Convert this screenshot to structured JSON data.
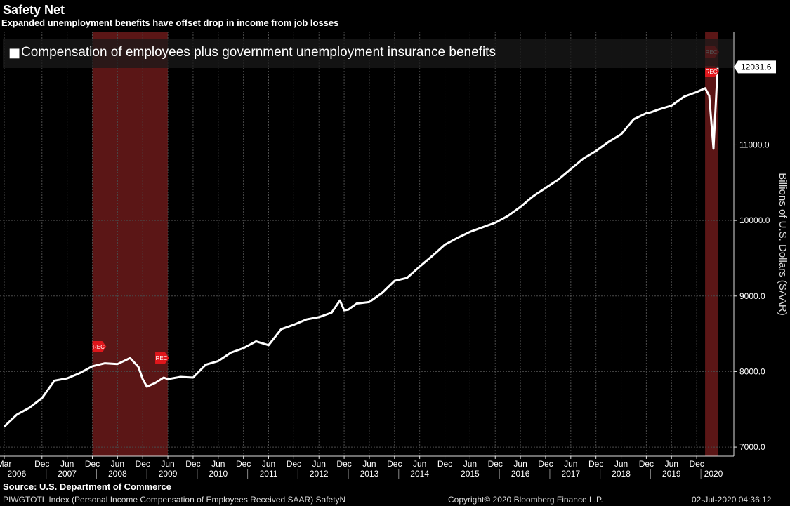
{
  "header": {
    "title": "Safety Net",
    "subtitle": "Expanded unemployment benefits have offset drop in income from job losses"
  },
  "footer": {
    "source": "Source: U.S. Department of Commerce",
    "ticker": "PIWGTOTL Index (Personal Income Compensation of Employees Received SAAR) SafetyN",
    "copyright": "Copyright© 2020 Bloomberg Finance L.P.",
    "timestamp": "02-Jul-2020 04:36:12"
  },
  "colors": {
    "background": "#000000",
    "line": "#ffffff",
    "recession": "#6b1a1a",
    "rec_marker": "#e0161b",
    "grid": "#4a4a4a"
  },
  "chart_data": {
    "type": "line",
    "title": "Safety Net",
    "subtitle": "Expanded unemployment benefits have offset drop in income from job losses",
    "ylabel": "Billions of U.S. Dollars (SAAR)",
    "ylim": [
      6880,
      12500
    ],
    "y_ticks": [
      7000,
      8000,
      9000,
      10000,
      11000
    ],
    "y_tick_labels": [
      "7000.0",
      "8000.0",
      "9000.0",
      "10000.0",
      "11000.0"
    ],
    "last_value_label": "12031.6",
    "grid": true,
    "legend": {
      "position": "top-left",
      "marker": "■"
    },
    "series": [
      {
        "name": "Compensation of employees plus government unemployment insurance benefits",
        "x": [
          "2006-03",
          "2006-06",
          "2006-09",
          "2006-12",
          "2007-03",
          "2007-06",
          "2007-09",
          "2007-12",
          "2008-03",
          "2008-06",
          "2008-09",
          "2008-11",
          "2008-12",
          "2009-01",
          "2009-03",
          "2009-05",
          "2009-06",
          "2009-09",
          "2009-12",
          "2010-03",
          "2010-06",
          "2010-09",
          "2010-12",
          "2011-03",
          "2011-06",
          "2011-09",
          "2011-12",
          "2012-03",
          "2012-06",
          "2012-09",
          "2012-11",
          "2012-12",
          "2013-01",
          "2013-03",
          "2013-06",
          "2013-09",
          "2013-12",
          "2014-03",
          "2014-06",
          "2014-09",
          "2014-12",
          "2015-03",
          "2015-06",
          "2015-09",
          "2015-12",
          "2016-03",
          "2016-06",
          "2016-09",
          "2016-12",
          "2017-03",
          "2017-06",
          "2017-09",
          "2017-12",
          "2018-03",
          "2018-06",
          "2018-09",
          "2018-12",
          "2019-01",
          "2019-03",
          "2019-06",
          "2019-09",
          "2019-12",
          "2020-02",
          "2020-03",
          "2020-04",
          "2020-05"
        ],
        "values": [
          7270,
          7430,
          7520,
          7650,
          7880,
          7910,
          7980,
          8070,
          8110,
          8100,
          8180,
          8060,
          7900,
          7800,
          7850,
          7920,
          7900,
          7930,
          7920,
          8090,
          8140,
          8250,
          8310,
          8400,
          8350,
          8560,
          8620,
          8690,
          8720,
          8780,
          8940,
          8810,
          8820,
          8900,
          8920,
          9040,
          9200,
          9240,
          9390,
          9530,
          9680,
          9770,
          9850,
          9910,
          9970,
          10060,
          10180,
          10320,
          10430,
          10540,
          10680,
          10820,
          10920,
          11040,
          11140,
          11340,
          11420,
          11430,
          11470,
          11520,
          11640,
          11700,
          11750,
          11650,
          10950,
          12031.6
        ]
      }
    ],
    "recessions": [
      {
        "start": "2007-12",
        "end": "2009-06"
      },
      {
        "start": "2020-02",
        "end": "2020-05"
      }
    ],
    "rec_marker_label": "REC",
    "x_month_ticks": [
      {
        "label": "Mar",
        "date": "2006-03"
      },
      {
        "label": "Dec",
        "date": "2006-12"
      },
      {
        "label": "Jun",
        "date": "2007-06"
      },
      {
        "label": "Dec",
        "date": "2007-12"
      },
      {
        "label": "Jun",
        "date": "2008-06"
      },
      {
        "label": "Dec",
        "date": "2008-12"
      },
      {
        "label": "Jun",
        "date": "2009-06"
      },
      {
        "label": "Dec",
        "date": "2009-12"
      },
      {
        "label": "Jun",
        "date": "2010-06"
      },
      {
        "label": "Dec",
        "date": "2010-12"
      },
      {
        "label": "Jun",
        "date": "2011-06"
      },
      {
        "label": "Dec",
        "date": "2011-12"
      },
      {
        "label": "Jun",
        "date": "2012-06"
      },
      {
        "label": "Dec",
        "date": "2012-12"
      },
      {
        "label": "Jun",
        "date": "2013-06"
      },
      {
        "label": "Dec",
        "date": "2013-12"
      },
      {
        "label": "Jun",
        "date": "2014-06"
      },
      {
        "label": "Dec",
        "date": "2014-12"
      },
      {
        "label": "Jun",
        "date": "2015-06"
      },
      {
        "label": "Dec",
        "date": "2015-12"
      },
      {
        "label": "Jun",
        "date": "2016-06"
      },
      {
        "label": "Dec",
        "date": "2016-12"
      },
      {
        "label": "Jun",
        "date": "2017-06"
      },
      {
        "label": "Dec",
        "date": "2017-12"
      },
      {
        "label": "Jun",
        "date": "2018-06"
      },
      {
        "label": "Dec",
        "date": "2018-12"
      },
      {
        "label": "Jun",
        "date": "2019-06"
      },
      {
        "label": "Dec",
        "date": "2019-12"
      }
    ],
    "x_year_ticks": [
      {
        "label": "2006",
        "date": "2006-06"
      },
      {
        "label": "2007",
        "date": "2007-06"
      },
      {
        "label": "2008",
        "date": "2008-06"
      },
      {
        "label": "2009",
        "date": "2009-06"
      },
      {
        "label": "2010",
        "date": "2010-06"
      },
      {
        "label": "2011",
        "date": "2011-06"
      },
      {
        "label": "2012",
        "date": "2012-06"
      },
      {
        "label": "2013",
        "date": "2013-06"
      },
      {
        "label": "2014",
        "date": "2014-06"
      },
      {
        "label": "2015",
        "date": "2015-06"
      },
      {
        "label": "2016",
        "date": "2016-06"
      },
      {
        "label": "2017",
        "date": "2017-06"
      },
      {
        "label": "2018",
        "date": "2018-06"
      },
      {
        "label": "2019",
        "date": "2019-06"
      },
      {
        "label": "2020",
        "date": "2020-04"
      }
    ]
  }
}
